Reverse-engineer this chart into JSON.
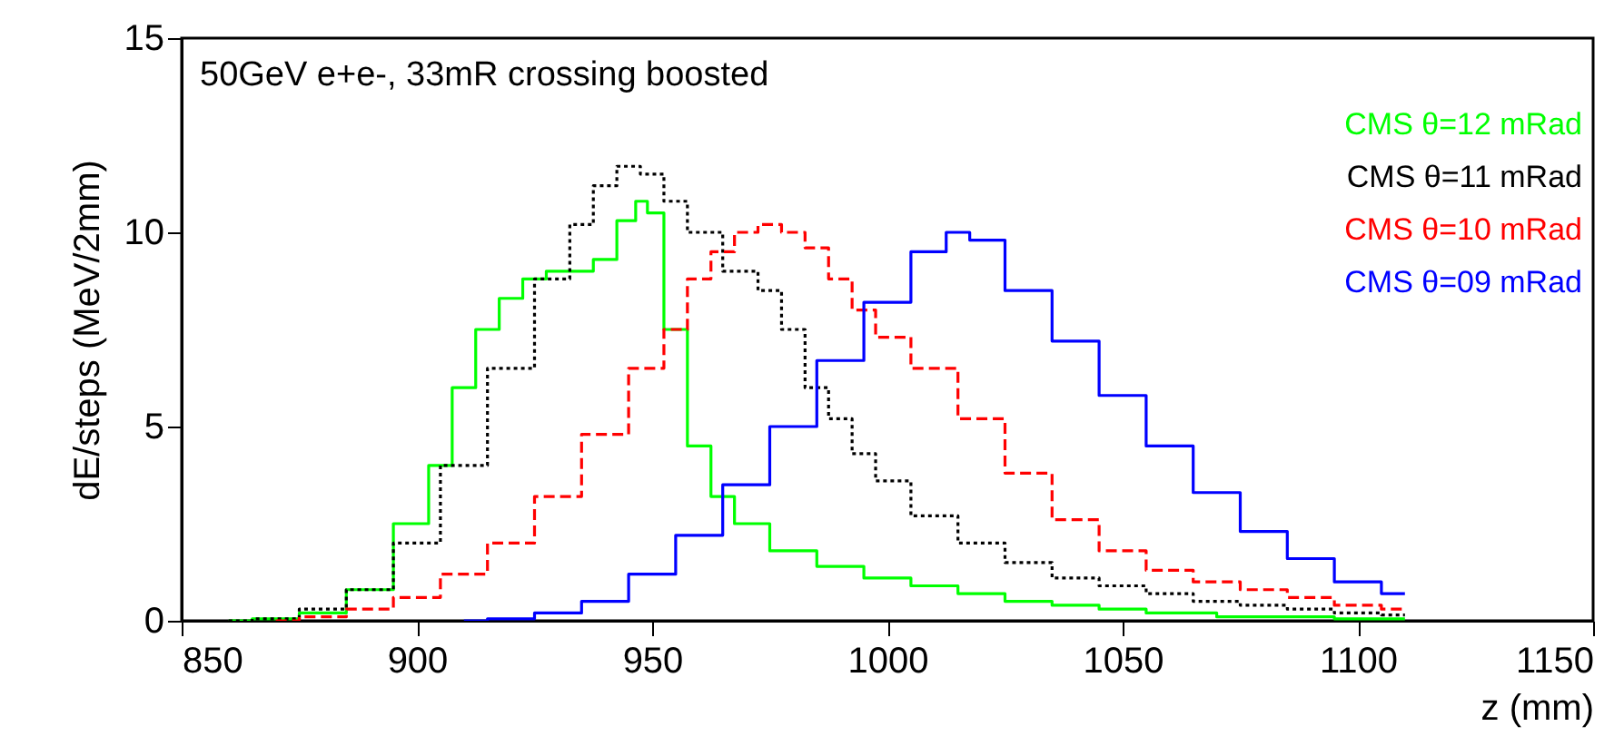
{
  "chart_data": {
    "type": "step",
    "title": "50GeV e+e-, 33mR crossing boosted",
    "xlabel": "z (mm)",
    "ylabel": "dE/steps (MeV/2mm)",
    "xlim": [
      850,
      1150
    ],
    "xticks": [
      850,
      900,
      950,
      1000,
      1050,
      1100,
      1150
    ],
    "ylim": [
      0,
      15
    ],
    "yticks": [
      0,
      5,
      10,
      15
    ],
    "grid": false,
    "legend": "top right",
    "series": [
      {
        "name": "CMS θ=12 mRad",
        "color": "#00ff00",
        "line_style": "solid",
        "x": [
          860,
          870,
          880,
          890,
          900,
          905,
          910,
          915,
          920,
          925,
          930,
          935,
          940,
          945,
          948,
          950,
          955,
          960,
          965,
          970,
          980,
          990,
          1000,
          1010,
          1020,
          1030,
          1040,
          1050,
          1060,
          1080,
          1110
        ],
        "values": [
          0,
          0.05,
          0.2,
          0.8,
          2.5,
          4,
          6,
          7.5,
          8.3,
          8.8,
          9,
          9,
          9.3,
          10.3,
          10.8,
          10.5,
          7.5,
          4.5,
          3.2,
          2.5,
          1.8,
          1.4,
          1.1,
          0.9,
          0.7,
          0.5,
          0.4,
          0.3,
          0.2,
          0.1,
          0.05
        ]
      },
      {
        "name": "CMS θ=11 mRad",
        "color": "#000000",
        "line_style": "dotted",
        "x": [
          860,
          870,
          880,
          890,
          900,
          910,
          920,
          930,
          935,
          940,
          945,
          950,
          955,
          960,
          970,
          975,
          980,
          985,
          990,
          995,
          1000,
          1010,
          1020,
          1030,
          1040,
          1050,
          1060,
          1070,
          1080,
          1090,
          1100,
          1110
        ],
        "values": [
          0,
          0.05,
          0.3,
          0.8,
          2,
          4,
          6.5,
          8.8,
          10.2,
          11.2,
          11.7,
          11.5,
          10.8,
          10,
          9,
          8.5,
          7.5,
          6,
          5.2,
          4.3,
          3.6,
          2.7,
          2,
          1.5,
          1.1,
          0.9,
          0.7,
          0.5,
          0.4,
          0.3,
          0.2,
          0.15
        ]
      },
      {
        "name": "CMS θ=10 mRad",
        "color": "#ff0000",
        "line_style": "dashed",
        "x": [
          870,
          880,
          890,
          900,
          910,
          920,
          930,
          940,
          950,
          955,
          960,
          965,
          970,
          975,
          980,
          985,
          990,
          995,
          1000,
          1010,
          1020,
          1030,
          1040,
          1050,
          1060,
          1070,
          1080,
          1090,
          1100,
          1110
        ],
        "values": [
          0,
          0.1,
          0.3,
          0.6,
          1.2,
          2,
          3.2,
          4.8,
          6.5,
          7.5,
          8.8,
          9.5,
          10,
          10.2,
          10,
          9.6,
          8.8,
          8,
          7.3,
          6.5,
          5.2,
          3.8,
          2.6,
          1.8,
          1.3,
          1,
          0.8,
          0.6,
          0.4,
          0.3
        ]
      },
      {
        "name": "CMS θ=09 mRad",
        "color": "#0000ff",
        "line_style": "solid",
        "x": [
          910,
          920,
          930,
          940,
          950,
          960,
          970,
          980,
          990,
          1000,
          1010,
          1015,
          1020,
          1030,
          1040,
          1050,
          1060,
          1070,
          1080,
          1090,
          1100,
          1110
        ],
        "values": [
          0,
          0.05,
          0.2,
          0.5,
          1.2,
          2.2,
          3.5,
          5,
          6.7,
          8.2,
          9.5,
          10,
          9.8,
          8.5,
          7.2,
          5.8,
          4.5,
          3.3,
          2.3,
          1.6,
          1,
          0.7
        ]
      }
    ]
  }
}
